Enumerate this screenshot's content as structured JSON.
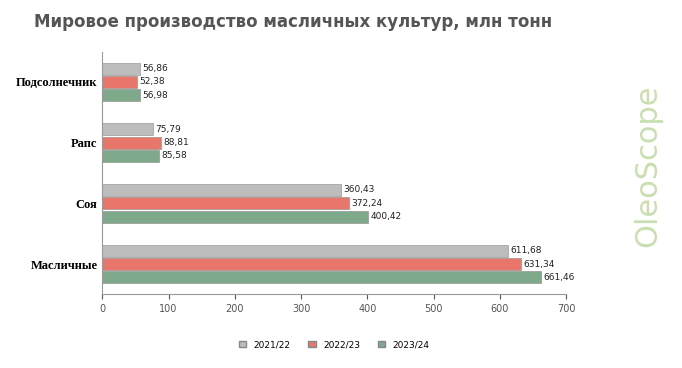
{
  "chart_data": {
    "type": "bar",
    "orientation": "horizontal",
    "title": "Мировое производство масличных культур, млн тонн",
    "categories": [
      "Подсолнечник",
      "Рапс",
      "Соя",
      "Масличные"
    ],
    "series": [
      {
        "name": "2021/22",
        "color": "#bdbdbd",
        "values": [
          56.86,
          75.79,
          360.43,
          611.68
        ],
        "value_labels": [
          "56,86",
          "75,79",
          "360,43",
          "611,68"
        ]
      },
      {
        "name": "2022/23",
        "color": "#e8766b",
        "values": [
          52.38,
          88.81,
          372.24,
          631.34
        ],
        "value_labels": [
          "52,38",
          "88,81",
          "372,24",
          "631,34"
        ]
      },
      {
        "name": "2023/24",
        "color": "#7fa98b",
        "values": [
          56.98,
          85.58,
          400.42,
          661.46
        ],
        "value_labels": [
          "56,98",
          "85,58",
          "400,42",
          "661,46"
        ]
      }
    ],
    "xlim": [
      0,
      700
    ],
    "xticks": [
      0,
      100,
      200,
      300,
      400,
      500,
      600,
      700
    ],
    "grid": false,
    "legend": "lower center",
    "data_labels": true,
    "annotations": [
      "OleoScope"
    ]
  }
}
